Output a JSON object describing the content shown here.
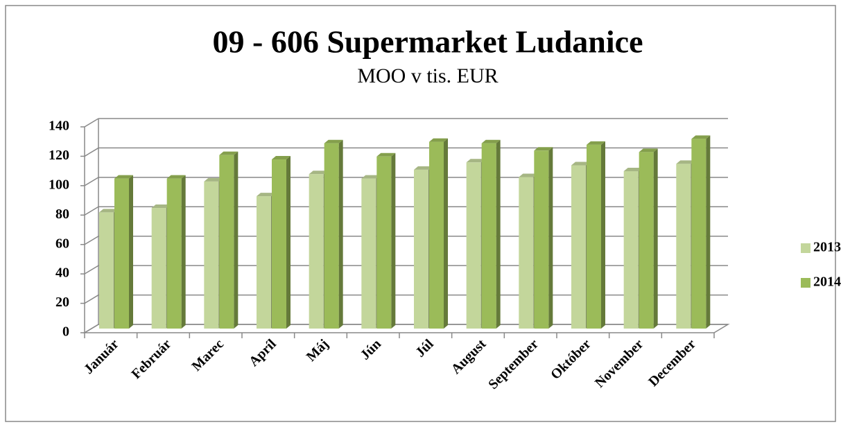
{
  "chart_data": {
    "type": "bar",
    "title": "09 - 606 Supermarket Ludanice",
    "subtitle": "MOO v tis. EUR",
    "categories": [
      "Január",
      "Február",
      "Marec",
      "Apríl",
      "Máj",
      "Jún",
      "Júl",
      "August",
      "September",
      "Október",
      "November",
      "December"
    ],
    "series": [
      {
        "name": "2013",
        "color": "#c3d69b",
        "values": [
          79,
          82,
          100,
          90,
          105,
          102,
          108,
          113,
          103,
          111,
          107,
          112
        ]
      },
      {
        "name": "2014",
        "color": "#9bbb59",
        "values": [
          102,
          102,
          118,
          115,
          126,
          117,
          127,
          126,
          121,
          125,
          120,
          129
        ]
      }
    ],
    "ylim": [
      0,
      140
    ],
    "yticks": [
      0,
      20,
      40,
      60,
      80,
      100,
      120,
      140
    ],
    "grid": true,
    "legend": "right"
  }
}
